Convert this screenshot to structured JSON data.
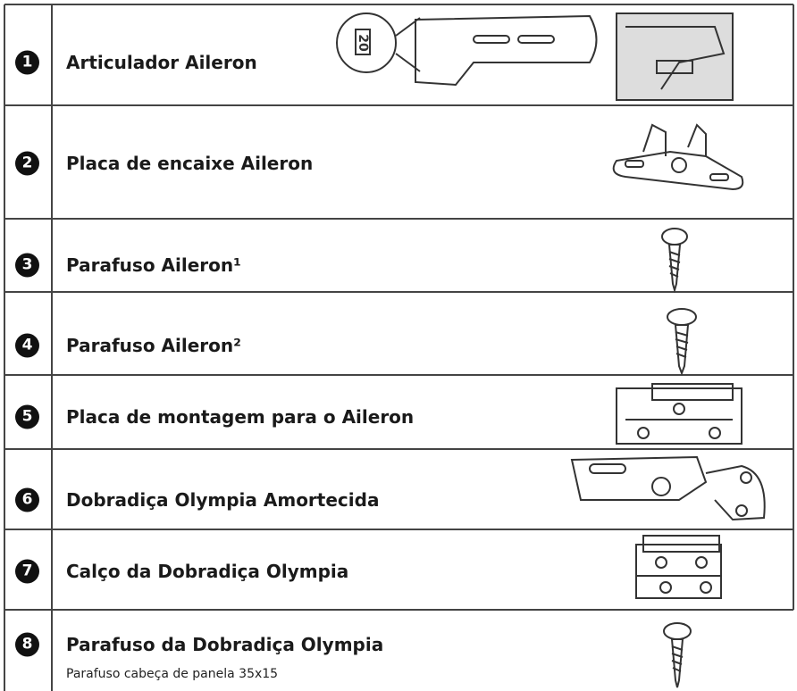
{
  "items": [
    {
      "number": 1,
      "label": "Articulador Aileron"
    },
    {
      "number": 2,
      "label": "Placa de encaixe Aileron"
    },
    {
      "number": 3,
      "label": "Parafuso Aileron¹"
    },
    {
      "number": 4,
      "label": "Parafuso Aileron²"
    },
    {
      "number": 5,
      "label": "Placa de montagem para o Aileron"
    },
    {
      "number": 6,
      "label": "Dobradiça Olympia Amortecida"
    },
    {
      "number": 7,
      "label": "Calço da Dobradiça Olympia"
    },
    {
      "number": 8,
      "label": "Parafuso da Dobradiça Olympia",
      "sublabel": "Parafuso cabeça de panela 35x15"
    }
  ],
  "figure_label": "20"
}
